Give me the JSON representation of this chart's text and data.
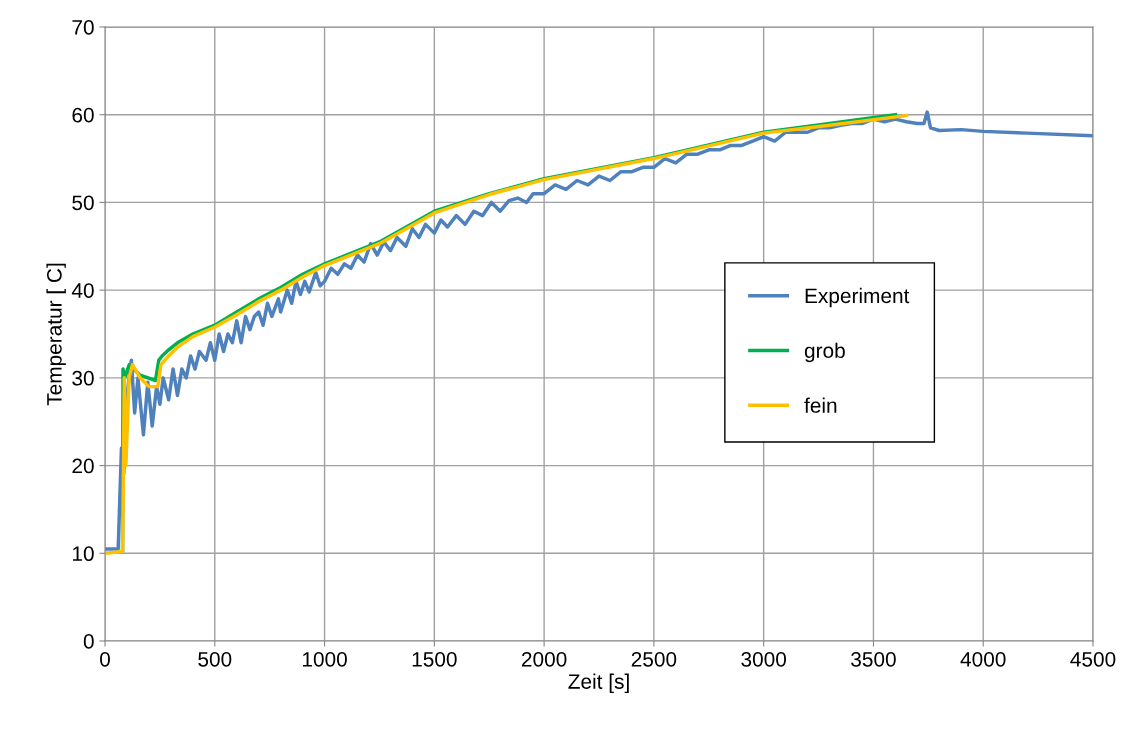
{
  "chart_data": {
    "type": "line",
    "xlabel": "Zeit [s]",
    "ylabel": "Temperatur [ C]",
    "xlim": [
      0,
      4500
    ],
    "xticks": [
      0,
      500,
      1000,
      1500,
      2000,
      2500,
      3000,
      3500,
      4000,
      4500
    ],
    "ylim": [
      0,
      70
    ],
    "yticks": [
      0,
      10,
      20,
      30,
      40,
      50,
      60,
      70
    ],
    "grid": true,
    "legend": "right",
    "marker": "none",
    "line_style": "solid",
    "series": [
      {
        "name": "Experiment",
        "color": "#4f81bd",
        "x": [
          0,
          60,
          75,
          85,
          100,
          120,
          135,
          150,
          175,
          195,
          215,
          235,
          250,
          265,
          290,
          310,
          330,
          350,
          370,
          390,
          410,
          430,
          460,
          480,
          500,
          520,
          540,
          560,
          580,
          600,
          620,
          640,
          660,
          680,
          700,
          720,
          740,
          760,
          790,
          800,
          830,
          850,
          870,
          890,
          910,
          930,
          960,
          980,
          1000,
          1030,
          1060,
          1090,
          1120,
          1150,
          1180,
          1210,
          1240,
          1270,
          1300,
          1330,
          1370,
          1400,
          1430,
          1460,
          1500,
          1530,
          1560,
          1600,
          1640,
          1680,
          1720,
          1760,
          1800,
          1840,
          1880,
          1920,
          1950,
          2000,
          2050,
          2100,
          2150,
          2200,
          2250,
          2300,
          2350,
          2400,
          2450,
          2500,
          2550,
          2600,
          2650,
          2700,
          2750,
          2800,
          2850,
          2900,
          2950,
          3000,
          3050,
          3100,
          3150,
          3200,
          3250,
          3300,
          3350,
          3400,
          3450,
          3500,
          3550,
          3600,
          3650,
          3700,
          3730,
          3745,
          3760,
          3800,
          3900,
          4000,
          4200,
          4500
        ],
        "values": [
          10.5,
          10.5,
          22,
          19,
          28,
          32,
          26,
          30,
          23.5,
          29.5,
          24.5,
          29,
          27,
          30,
          27.5,
          31,
          28,
          31,
          30,
          32.5,
          31,
          33,
          32,
          34,
          32,
          35,
          33,
          35,
          34,
          36.5,
          34,
          37,
          35.5,
          37,
          37.5,
          36,
          38.5,
          37,
          39,
          37.5,
          40,
          38.5,
          41,
          39.5,
          41,
          39.8,
          42,
          40.5,
          41,
          42.5,
          41.8,
          43,
          42.5,
          44,
          43.2,
          45.3,
          44,
          45.5,
          44.5,
          46,
          45,
          47,
          46,
          47.5,
          46.5,
          48,
          47.2,
          48.5,
          47.5,
          49,
          48.5,
          50,
          49,
          50.2,
          50.5,
          50,
          51,
          51,
          52,
          51.5,
          52.5,
          52,
          53,
          52.5,
          53.5,
          53.5,
          54,
          54,
          55,
          54.5,
          55.5,
          55.5,
          56,
          56,
          56.5,
          56.5,
          57,
          57.5,
          57,
          58,
          58,
          58,
          58.5,
          58.5,
          58.8,
          59,
          59,
          59.5,
          59.2,
          59.5,
          59.2,
          59,
          59,
          60.3,
          58.5,
          58.2,
          58.3,
          58.1,
          57.9,
          57.6
        ]
      },
      {
        "name": "grob",
        "color": "#00b050",
        "x": [
          80,
          82,
          90,
          110,
          130,
          160,
          230,
          245,
          260,
          290,
          330,
          400,
          500,
          600,
          700,
          800,
          900,
          1000,
          1250,
          1500,
          1750,
          2000,
          2500,
          3000,
          3300,
          3600
        ],
        "values": [
          10.3,
          31,
          30,
          31.5,
          31,
          30.3,
          29.7,
          32,
          32.5,
          33.2,
          34,
          35,
          36,
          37.5,
          39,
          40.3,
          41.8,
          43,
          45.5,
          49,
          51,
          52.7,
          55.1,
          58,
          59,
          60
        ]
      },
      {
        "name": "fein",
        "color": "#ffc000",
        "x": [
          0,
          80,
          88,
          95,
          110,
          125,
          160,
          200,
          240,
          255,
          290,
          330,
          400,
          500,
          600,
          700,
          800,
          900,
          1000,
          1250,
          1500,
          1750,
          2000,
          2500,
          3000,
          3300,
          3650
        ],
        "values": [
          10,
          10.2,
          30,
          20,
          30,
          31.5,
          30,
          29,
          29,
          31.5,
          32.5,
          33.5,
          34.7,
          35.8,
          37.2,
          38.7,
          40,
          41.5,
          42.8,
          45.3,
          48.8,
          50.9,
          52.6,
          55,
          57.9,
          58.8,
          59.9
        ]
      }
    ]
  }
}
